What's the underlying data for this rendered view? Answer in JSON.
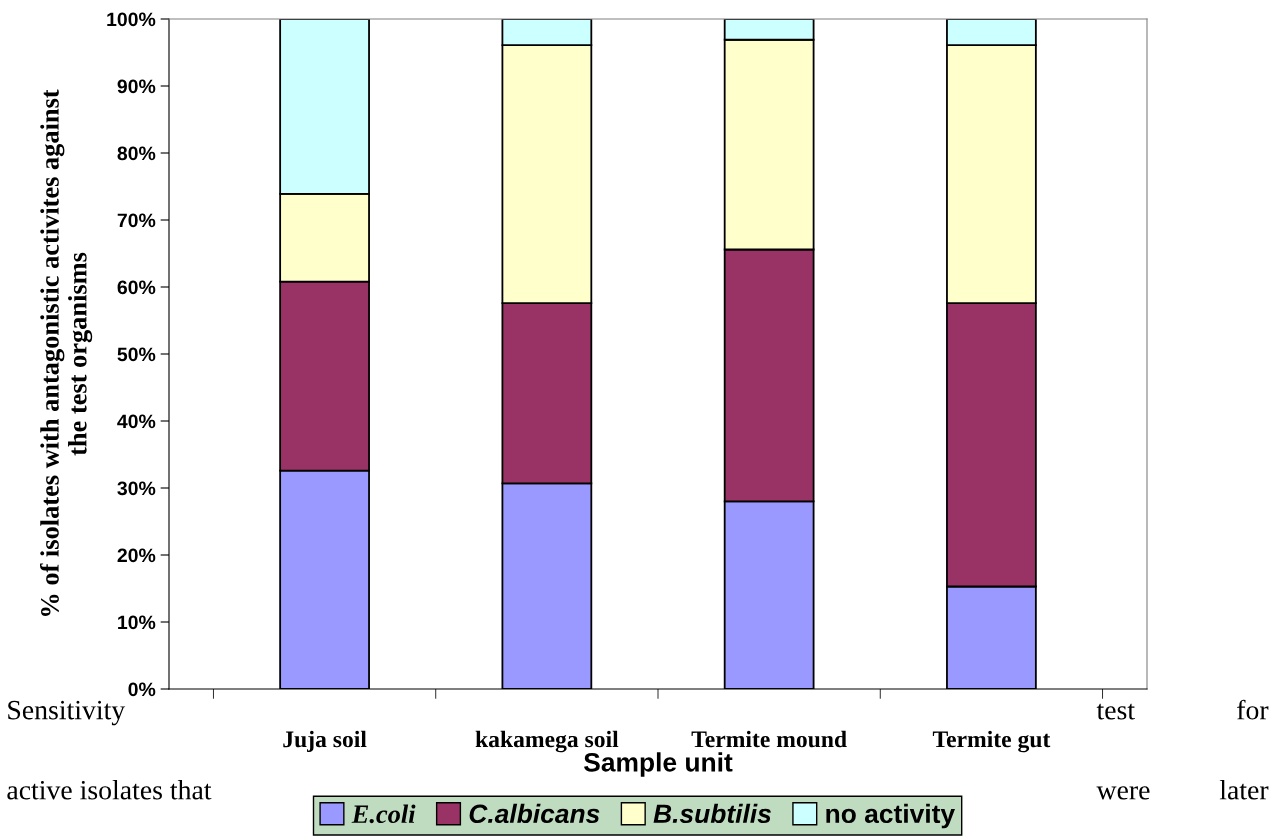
{
  "chart_data": {
    "type": "bar",
    "stacked": true,
    "xlabel": "Sample unit",
    "ylabel": "% of isolates with antagonistic activites against\nthe test organisms",
    "categories": [
      "Juja soil",
      "kakamega soil",
      "Termite mound",
      "Termite gut"
    ],
    "series": [
      {
        "name": "E.coli",
        "color": "#9999ff",
        "values": [
          32.6,
          30.7,
          28.0,
          15.3
        ]
      },
      {
        "name": "C.albicans",
        "color": "#993366",
        "values": [
          28.2,
          26.9,
          37.6,
          42.3
        ]
      },
      {
        "name": "B.subtilis",
        "color": "#ffffcc",
        "values": [
          13.1,
          38.5,
          31.3,
          38.5
        ]
      },
      {
        "name": "no activity",
        "color": "#ccffff",
        "values": [
          26.1,
          3.9,
          3.1,
          3.9
        ]
      }
    ],
    "ylim": [
      0,
      100
    ],
    "yticks": [
      {
        "value": 0,
        "label": "0%"
      },
      {
        "value": 10,
        "label": "10%"
      },
      {
        "value": 20,
        "label": "20%"
      },
      {
        "value": 30,
        "label": "30%"
      },
      {
        "value": 40,
        "label": "40%"
      },
      {
        "value": 50,
        "label": "50%"
      },
      {
        "value": 60,
        "label": "60%"
      },
      {
        "value": 70,
        "label": "70%"
      },
      {
        "value": 80,
        "label": "80%"
      },
      {
        "value": 90,
        "label": "90%"
      },
      {
        "value": 100,
        "label": "100%"
      }
    ],
    "grid": false,
    "legend": "bottom",
    "annotations": [
      "Sensitivity",
      "test for",
      "active isolates that",
      "were later"
    ]
  }
}
